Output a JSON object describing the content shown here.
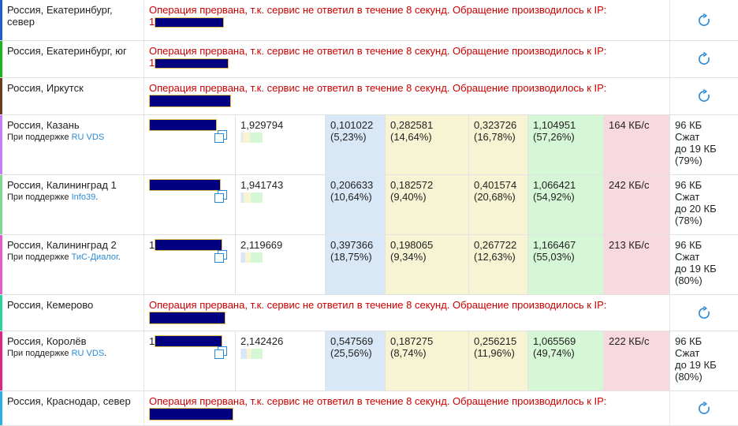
{
  "error_message": "Операция прервана, т.к. сервис не ответил в течение 8 секунд. Обращение производилось к IP:",
  "sponsor_prefix": "При поддержке",
  "colors": {
    "error_text": "#cc0000",
    "link": "#2a8ad6",
    "mask": "#000080",
    "col_connect": "#d9e8f7",
    "col_wait": "#f6f4d2",
    "col_total": "#d6f7d6",
    "col_speed": "#f8d9df"
  },
  "rows": [
    {
      "location": "Россия, Екатеринбург, север",
      "stripe": "#1f5fd1",
      "status": "error",
      "ip_prefix": "1"
    },
    {
      "location": "Россия, Екатеринбург, юг",
      "stripe": "#17b61a",
      "status": "error",
      "ip_prefix": "1"
    },
    {
      "location": "Россия, Иркутск",
      "stripe": "#6b3b1f",
      "status": "error",
      "ip_prefix": ""
    },
    {
      "location": "Россия, Казань",
      "stripe": "#c77cff",
      "status": "ok",
      "sponsor": "RU VDS",
      "sponsor_suffix": "",
      "dns": "1,929794",
      "connect": "0,101022",
      "connect_pct": "(5,23%)",
      "send": "0,282581",
      "send_pct": "(14,64%)",
      "wait": "0,323726",
      "wait_pct": "(16,78%)",
      "total": "1,104951",
      "total_pct": "(57,26%)",
      "speed": "164 КБ/с",
      "size": "96 КБ",
      "compressed": "Сжат",
      "compressed_to": "до 19 КБ",
      "compressed_pct": "(79%)"
    },
    {
      "location": "Россия, Калининград 1",
      "stripe": "#7fd68f",
      "status": "ok",
      "sponsor": "Info39",
      "sponsor_suffix": ".",
      "dns": "1,941743",
      "connect": "0,206633",
      "connect_pct": "(10,64%)",
      "send": "0,182572",
      "send_pct": "(9,40%)",
      "wait": "0,401574",
      "wait_pct": "(20,68%)",
      "total": "1,066421",
      "total_pct": "(54,92%)",
      "speed": "242 КБ/с",
      "size": "96 КБ",
      "compressed": "Сжат",
      "compressed_to": "до 20 КБ",
      "compressed_pct": "(78%)"
    },
    {
      "location": "Россия, Калининград 2",
      "stripe": "#e65acb",
      "status": "ok",
      "sponsor": "ТиС-Диалог",
      "sponsor_suffix": ".",
      "ip_prefix": "1",
      "dns": "2,119669",
      "connect": "0,397366",
      "connect_pct": "(18,75%)",
      "send": "0,198065",
      "send_pct": "(9,34%)",
      "wait": "0,267722",
      "wait_pct": "(12,63%)",
      "total": "1,166467",
      "total_pct": "(55,03%)",
      "speed": "213 КБ/с",
      "size": "96 КБ",
      "compressed": "Сжат",
      "compressed_to": "до 19 КБ",
      "compressed_pct": "(80%)"
    },
    {
      "location": "Россия, Кемерово",
      "stripe": "#27d69a",
      "status": "error",
      "ip_prefix": ""
    },
    {
      "location": "Россия, Королёв",
      "stripe": "#e0218a",
      "status": "ok",
      "sponsor": "RU VDS",
      "sponsor_suffix": ".",
      "ip_prefix": "1",
      "dns": "2,142426",
      "connect": "0,547569",
      "connect_pct": "(25,56%)",
      "send": "0,187275",
      "send_pct": "(8,74%)",
      "wait": "0,256215",
      "wait_pct": "(11,96%)",
      "total": "1,065569",
      "total_pct": "(49,74%)",
      "speed": "222 КБ/с",
      "size": "96 КБ",
      "compressed": "Сжат",
      "compressed_to": "до 19 КБ",
      "compressed_pct": "(80%)"
    },
    {
      "location": "Россия, Краснодар, север",
      "stripe": "#26b2e8",
      "status": "error",
      "ip_prefix": ""
    }
  ]
}
